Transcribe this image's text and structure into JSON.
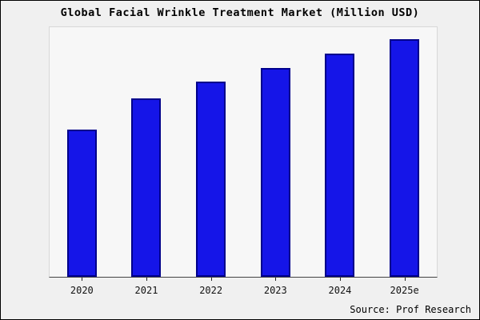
{
  "title": "Global Facial Wrinkle Treatment Market (Million USD)",
  "source_note": "Source: Prof Research",
  "colors": {
    "bar_fill": "#1515e8",
    "bar_border": "#00008b",
    "frame_bg": "#f0f0f0",
    "plot_bg": "#f7f7f7"
  },
  "chart_data": {
    "type": "bar",
    "title": "Global Facial Wrinkle Treatment Market (Million USD)",
    "categories": [
      "2020",
      "2021",
      "2022",
      "2023",
      "2024",
      "2025e"
    ],
    "values": [
      62,
      75,
      82,
      88,
      94,
      100
    ],
    "values_note": "relative heights estimated; no y-axis tick labels shown in chart",
    "xlabel": "",
    "ylabel": "",
    "ylim": [
      0,
      105
    ],
    "grid": false,
    "legend": "none",
    "source": "Source: Prof Research"
  }
}
